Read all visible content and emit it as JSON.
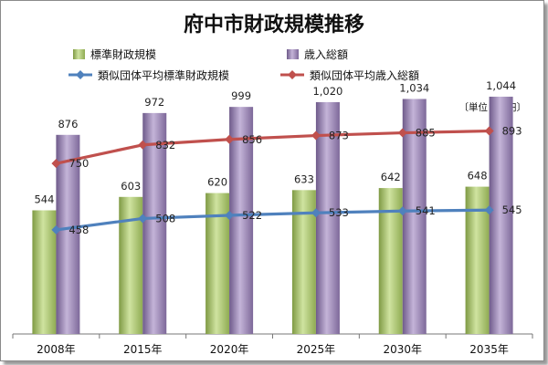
{
  "chart_data": {
    "type": "bar",
    "title": "府中市財政規模推移",
    "unit_note": "〔単位：億円〕",
    "categories": [
      "2008年",
      "2015年",
      "2020年",
      "2025年",
      "2030年",
      "2035年"
    ],
    "bar_series": [
      {
        "name": "標準財政規模",
        "values": [
          544,
          603,
          620,
          633,
          642,
          648
        ],
        "labels": [
          "544",
          "603",
          "620",
          "633",
          "642",
          "648"
        ],
        "color": "#a9c46c"
      },
      {
        "name": "歳入総額",
        "values": [
          876,
          972,
          999,
          1020,
          1034,
          1044
        ],
        "labels": [
          "876",
          "972",
          "999",
          "1,020",
          "1,034",
          "1,044"
        ],
        "color": "#9b86b3"
      }
    ],
    "line_series": [
      {
        "name": "類似団体平均標準財政規模",
        "values": [
          458,
          508,
          522,
          533,
          541,
          545
        ],
        "labels": [
          "458",
          "508",
          "522",
          "533",
          "541",
          "545"
        ],
        "color": "#4f81bd",
        "marker": "diamond"
      },
      {
        "name": "類似団体平均歳入総額",
        "values": [
          750,
          832,
          856,
          873,
          885,
          893
        ],
        "labels": [
          "750",
          "832",
          "856",
          "873",
          "885",
          "893"
        ],
        "color": "#c0504d",
        "marker": "diamond"
      }
    ],
    "ylim": [
      0,
      1100
    ],
    "xlabel": "",
    "ylabel": "",
    "grid": false,
    "legend_position": "top"
  }
}
